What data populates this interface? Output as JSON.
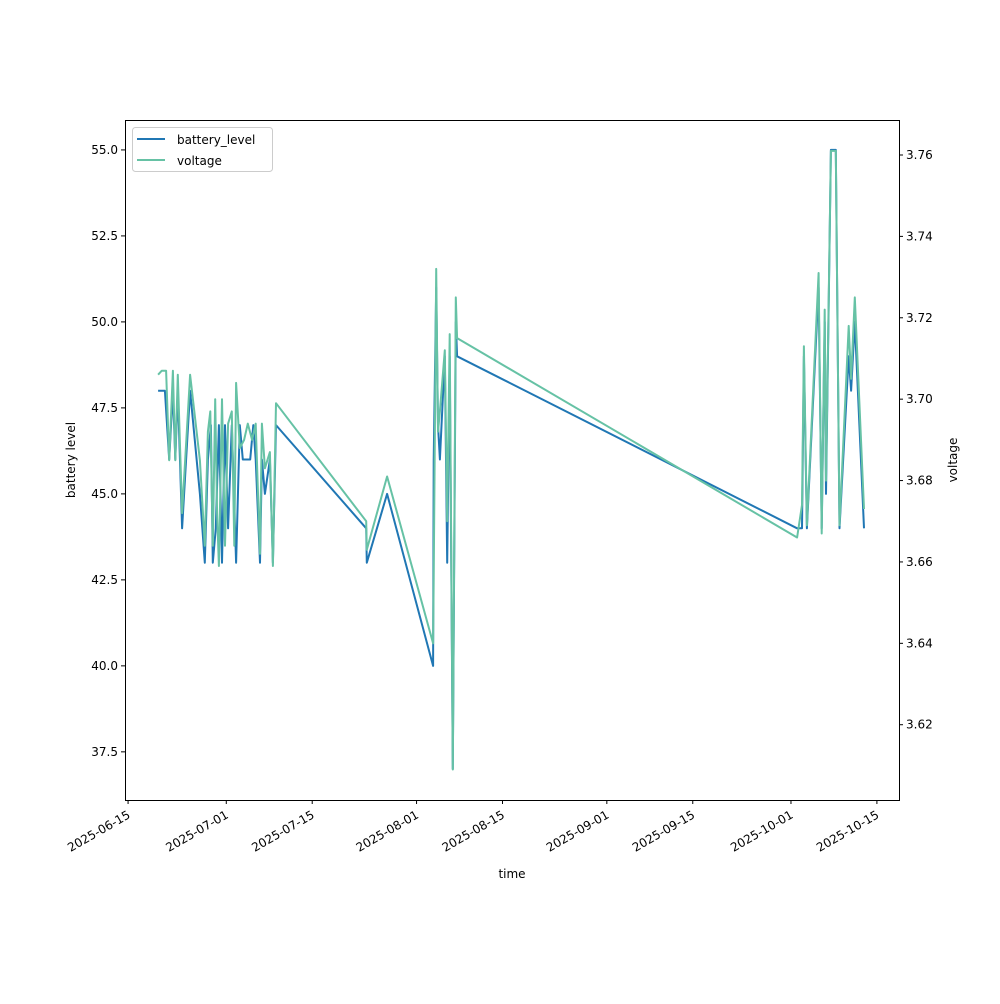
{
  "chart_data": {
    "type": "line",
    "title": "",
    "xlabel": "time",
    "ylabel_left": "battery level",
    "ylabel_right": "voltage",
    "x_origin_date": "2025-06-15",
    "x_unit": "days since 2025-06-15",
    "xlim_days": [
      -0.5,
      125.6
    ],
    "ylim_left": [
      36.1,
      55.87
    ],
    "ylim_right": [
      3.6015,
      3.7686
    ],
    "x_ticks": [
      {
        "day": 0,
        "label": "2025-06-15"
      },
      {
        "day": 16,
        "label": "2025-07-01"
      },
      {
        "day": 30,
        "label": "2025-07-15"
      },
      {
        "day": 47,
        "label": "2025-08-01"
      },
      {
        "day": 61,
        "label": "2025-08-15"
      },
      {
        "day": 78,
        "label": "2025-09-01"
      },
      {
        "day": 92,
        "label": "2025-09-15"
      },
      {
        "day": 108,
        "label": "2025-10-01"
      },
      {
        "day": 122,
        "label": "2025-10-15"
      }
    ],
    "y_ticks_left": [
      {
        "v": 37.5,
        "label": "37.5"
      },
      {
        "v": 40.0,
        "label": "40.0"
      },
      {
        "v": 42.5,
        "label": "42.5"
      },
      {
        "v": 45.0,
        "label": "45.0"
      },
      {
        "v": 47.5,
        "label": "47.5"
      },
      {
        "v": 50.0,
        "label": "50.0"
      },
      {
        "v": 52.5,
        "label": "52.5"
      },
      {
        "v": 55.0,
        "label": "55.0"
      }
    ],
    "y_ticks_right": [
      {
        "v": 3.62,
        "label": "3.62"
      },
      {
        "v": 3.64,
        "label": "3.64"
      },
      {
        "v": 3.66,
        "label": "3.66"
      },
      {
        "v": 3.68,
        "label": "3.68"
      },
      {
        "v": 3.7,
        "label": "3.70"
      },
      {
        "v": 3.72,
        "label": "3.72"
      },
      {
        "v": 3.74,
        "label": "3.74"
      },
      {
        "v": 3.76,
        "label": "3.76"
      }
    ],
    "legend_placement": "upper-left",
    "series": [
      {
        "name": "battery_level",
        "axis": "left",
        "color": "#2077b4",
        "x": [
          4.9,
          6.0,
          6.7,
          7.3,
          7.7,
          8.1,
          8.8,
          10.1,
          11.7,
          12.5,
          13.0,
          13.5,
          13.8,
          14.3,
          14.8,
          15.3,
          15.8,
          16.3,
          16.9,
          17.6,
          18.2,
          18.7,
          19.4,
          19.9,
          20.4,
          20.8,
          21.5,
          21.8,
          22.3,
          23.1,
          23.6,
          24.1,
          38.8,
          38.9,
          42.2,
          49.7,
          49.8,
          50.2,
          50.5,
          50.8,
          51.6,
          52.0,
          52.4,
          52.9,
          53.4,
          53.6,
          109.0,
          109.8,
          110.1,
          110.6,
          112.5,
          113.0,
          113.5,
          113.7,
          114.5,
          115.3,
          115.9,
          117.4,
          117.8,
          118.4,
          119.9
        ],
        "y": [
          48,
          48,
          46,
          48,
          46,
          48,
          44,
          48,
          45,
          43,
          46,
          47,
          43,
          44,
          47,
          43,
          47,
          44,
          47,
          43,
          47,
          46,
          46,
          46,
          47,
          46,
          43,
          46,
          45,
          46,
          43,
          47,
          44,
          43,
          45,
          40,
          46,
          51,
          47,
          46,
          49,
          43,
          49,
          37,
          50,
          49,
          44,
          44,
          49,
          44,
          51,
          44,
          50,
          45,
          55,
          55,
          44,
          49,
          48,
          50,
          44
        ]
      },
      {
        "name": "voltage",
        "axis": "right",
        "color": "#66c2a5",
        "x": [
          4.9,
          5.5,
          6.2,
          6.7,
          7.3,
          7.7,
          8.1,
          8.8,
          10.1,
          11.7,
          12.5,
          13.0,
          13.4,
          13.8,
          14.2,
          14.5,
          14.8,
          15.3,
          15.8,
          16.3,
          16.9,
          17.3,
          17.6,
          18.2,
          18.9,
          19.5,
          20.2,
          20.8,
          21.5,
          21.8,
          22.3,
          23.1,
          23.6,
          24.1,
          38.8,
          38.9,
          42.2,
          49.7,
          49.8,
          50.2,
          50.5,
          50.8,
          51.6,
          52.0,
          52.4,
          52.9,
          53.4,
          53.6,
          109.0,
          109.8,
          110.1,
          110.6,
          112.5,
          113.0,
          113.5,
          113.7,
          114.5,
          115.3,
          115.9,
          117.4,
          117.8,
          118.4,
          119.9
        ],
        "y": [
          3.706,
          3.707,
          3.707,
          3.685,
          3.707,
          3.685,
          3.706,
          3.672,
          3.706,
          3.685,
          3.664,
          3.692,
          3.697,
          3.664,
          3.7,
          3.672,
          3.659,
          3.7,
          3.664,
          3.694,
          3.697,
          3.664,
          3.704,
          3.688,
          3.69,
          3.694,
          3.69,
          3.694,
          3.662,
          3.694,
          3.683,
          3.687,
          3.659,
          3.699,
          3.67,
          3.663,
          3.681,
          3.64,
          3.656,
          3.732,
          3.692,
          3.697,
          3.712,
          3.67,
          3.716,
          3.609,
          3.725,
          3.715,
          3.666,
          3.674,
          3.713,
          3.669,
          3.731,
          3.667,
          3.722,
          3.68,
          3.761,
          3.761,
          3.669,
          3.718,
          3.705,
          3.725,
          3.673
        ]
      }
    ]
  }
}
